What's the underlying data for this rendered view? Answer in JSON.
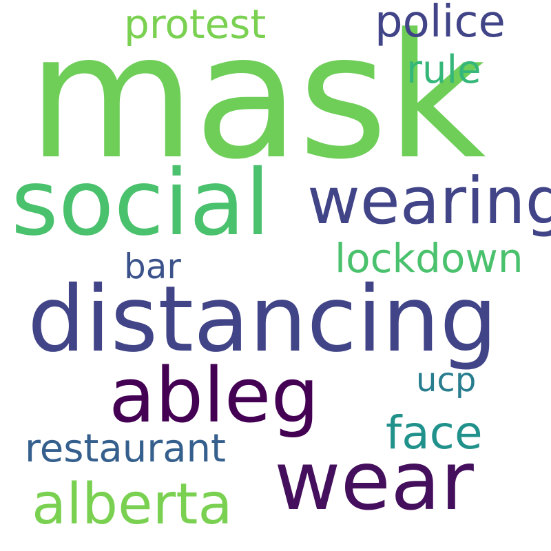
{
  "words": {
    "mask": {
      "text": "mask",
      "color": "#6ece58"
    },
    "social": {
      "text": "social",
      "color": "#4ac16d"
    },
    "wearing": {
      "text": "wearing",
      "color": "#414487"
    },
    "distancing": {
      "text": "distancing",
      "color": "#414487"
    },
    "ableg": {
      "text": "ableg",
      "color": "#440154"
    },
    "wear": {
      "text": "wear",
      "color": "#440f5c"
    },
    "alberta": {
      "text": "alberta",
      "color": "#7ad151"
    },
    "restaurant": {
      "text": "restaurant",
      "color": "#355f8d"
    },
    "face": {
      "text": "face",
      "color": "#21918c"
    },
    "ucp": {
      "text": "ucp",
      "color": "#287d8e"
    },
    "lockdown": {
      "text": "lockdown",
      "color": "#4ac16d"
    },
    "bar": {
      "text": "bar",
      "color": "#3b528b"
    },
    "police": {
      "text": "police",
      "color": "#414487"
    },
    "rule": {
      "text": "rule",
      "color": "#35b779"
    },
    "protest": {
      "text": "protest",
      "color": "#7ad151"
    }
  }
}
